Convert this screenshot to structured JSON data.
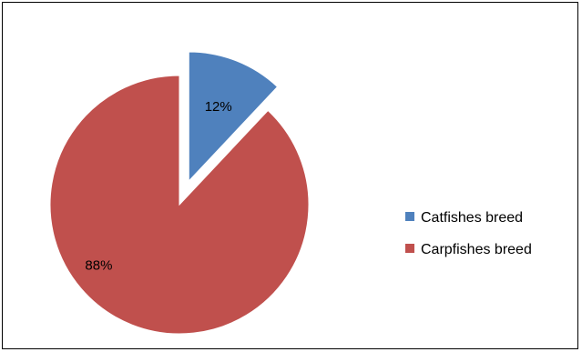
{
  "chart_data": {
    "type": "pie",
    "categories": [
      "Catfishes breed",
      "Carpfishes breed"
    ],
    "values": [
      12,
      88
    ],
    "data_labels": [
      "12%",
      "88%"
    ],
    "colors": [
      "#4f81bd",
      "#c0504d"
    ],
    "exploded": [
      "Catfishes breed"
    ],
    "legend_position": "right"
  }
}
